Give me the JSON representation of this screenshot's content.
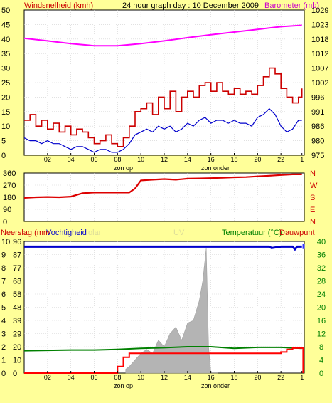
{
  "header": {
    "left_label": "Windsnelheid (kmh)",
    "title": "24 hour graph day : 10 December 2009",
    "right_label": "Barometer (mb)"
  },
  "x_axis": {
    "ticks": [
      "02",
      "04",
      "06",
      "08",
      "10",
      "12",
      "14",
      "16",
      "18",
      "20",
      "22",
      "1"
    ],
    "tick_hours": [
      2,
      4,
      6,
      8,
      10,
      12,
      14,
      16,
      18,
      20,
      22,
      23.8
    ],
    "sunrise_label": "zon op",
    "sunset_label": "zon onder",
    "sunrise_hour": 8.7,
    "sunset_hour": 16.6
  },
  "colors": {
    "background": "#ffff99",
    "plot_bg": "#ffffff",
    "wind": "#cc0000",
    "gust_red": "#ee0000",
    "wind_avg": "#0000cc",
    "barometer": "#ff00ff",
    "direction": "#dd0000",
    "humidity": "#0000cc",
    "temperature": "#008000",
    "dewpoint": "#ff0000",
    "uv_fill": "#b4b4b4",
    "label_blue": "#0000cc",
    "label_green": "#008000",
    "label_red": "#cc0000"
  },
  "panel2": {
    "right_labels": [
      "N",
      "W",
      "S",
      "E",
      "N"
    ]
  },
  "panel3": {
    "left_title": "Neerslag (mm",
    "humidity_title": "Vochtigheid",
    "solar_title": "olar",
    "uv_title": "UV",
    "temp_title": "Temperatuur (°C)",
    "dew_title": "Dauwpunt"
  },
  "chart_data": [
    {
      "type": "line",
      "panel": "wind and barometer",
      "y_left": {
        "title": "Windsnelheid (kmh)",
        "ticks": [
          0,
          5,
          10,
          15,
          20,
          25,
          30,
          35,
          40,
          45,
          50
        ],
        "ylim": [
          0,
          50
        ]
      },
      "y_right": {
        "title": "Barometer (mb)",
        "ticks": [
          975,
          980,
          986,
          991,
          996,
          1002,
          1007,
          1012,
          1018,
          1023,
          1029
        ],
        "ylim": [
          975,
          1029
        ]
      },
      "series": [
        {
          "color": "#cc0000",
          "hours": [
            0,
            0.5,
            1,
            1.5,
            2,
            2.5,
            3,
            3.5,
            4,
            4.5,
            5,
            5.5,
            6,
            6.5,
            7,
            7.5,
            8,
            8.5,
            9,
            9.5,
            10,
            10.5,
            11,
            11.5,
            12,
            12.5,
            13,
            13.5,
            14,
            14.5,
            15,
            15.5,
            16,
            16.5,
            17,
            17.5,
            18,
            18.5,
            19,
            19.5,
            20,
            20.5,
            21,
            21.5,
            22,
            22.5,
            23,
            23.5,
            23.8
          ],
          "values": [
            12,
            14,
            10,
            12,
            9,
            11,
            8,
            10,
            7,
            9,
            8,
            6,
            4,
            5,
            7,
            4,
            3,
            6,
            10,
            15,
            16,
            18,
            14,
            20,
            16,
            22,
            15,
            20,
            22,
            20,
            24,
            25,
            22,
            25,
            22,
            21,
            23,
            21,
            22,
            21,
            24,
            27,
            30,
            28,
            23,
            20,
            18,
            20,
            23
          ]
        },
        {
          "color": "#0000cc",
          "hours": [
            0,
            0.5,
            1,
            1.5,
            2,
            2.5,
            3,
            3.5,
            4,
            4.5,
            5,
            5.5,
            6,
            6.5,
            7,
            7.5,
            8,
            8.5,
            9,
            9.5,
            10,
            10.5,
            11,
            11.5,
            12,
            12.5,
            13,
            13.5,
            14,
            14.5,
            15,
            15.5,
            16,
            16.5,
            17,
            17.5,
            18,
            18.5,
            19,
            19.5,
            20,
            20.5,
            21,
            21.5,
            22,
            22.5,
            23,
            23.5,
            23.8
          ],
          "values": [
            6,
            5,
            5,
            4,
            5,
            4,
            4,
            3,
            2,
            3,
            3,
            2,
            1,
            2,
            2,
            1,
            1,
            2,
            4,
            7,
            8,
            9,
            8,
            10,
            9,
            10,
            8,
            9,
            11,
            10,
            12,
            13,
            11,
            12,
            12,
            11,
            12,
            11,
            11,
            10,
            13,
            14,
            16,
            14,
            10,
            8,
            9,
            12,
            12
          ]
        },
        {
          "color": "#ff00ff",
          "axis": "right",
          "hours": [
            0,
            2,
            4,
            6,
            8,
            10,
            12,
            14,
            16,
            18,
            20,
            22,
            23.8
          ],
          "values": [
            1018.5,
            1017.5,
            1016.5,
            1015.7,
            1015.7,
            1016.5,
            1017.5,
            1018.7,
            1019.8,
            1020.8,
            1021.8,
            1022.8,
            1023.3
          ]
        }
      ]
    },
    {
      "type": "line",
      "panel": "wind direction",
      "y_left": {
        "ticks": [
          0,
          90,
          180,
          270,
          360
        ],
        "ylim": [
          0,
          360
        ]
      },
      "y_right_labels": [
        "N",
        "W",
        "S",
        "E",
        "N"
      ],
      "series": [
        {
          "color": "#dd0000",
          "hours": [
            0,
            1,
            2,
            3,
            4,
            5,
            6,
            7,
            8,
            9,
            9.5,
            10,
            11,
            12,
            13,
            14,
            15,
            16,
            17,
            18,
            19,
            20,
            21,
            22,
            23,
            23.8
          ],
          "values": [
            175,
            180,
            182,
            180,
            185,
            210,
            215,
            215,
            215,
            215,
            245,
            305,
            310,
            315,
            310,
            318,
            320,
            322,
            325,
            328,
            330,
            335,
            340,
            345,
            350,
            350
          ]
        }
      ]
    },
    {
      "type": "area",
      "panel": "precipitation, humidity, UV, temperature",
      "y_left": {
        "title": "Neerslag (mm",
        "ticks": [
          0,
          1,
          2,
          3,
          4,
          5,
          6,
          7,
          8,
          9,
          10
        ],
        "ylim": [
          0,
          10
        ]
      },
      "y_left_humidity": {
        "title": "Vochtigheid",
        "ticks": [
          0,
          10,
          20,
          29,
          39,
          48,
          58,
          68,
          77,
          87,
          96
        ]
      },
      "y_right": {
        "title": "Temperatuur (°C)",
        "ticks": [
          0,
          4,
          8,
          12,
          16,
          20,
          24,
          28,
          32,
          36,
          40
        ],
        "ylim": [
          0,
          40
        ]
      },
      "series": [
        {
          "color": "#b4b4b4",
          "hours": [
            8.7,
            9,
            9.5,
            10,
            10.5,
            11,
            11.5,
            12,
            12.5,
            13,
            13.5,
            14,
            14.5,
            15,
            15.3,
            15.6,
            15.8,
            16,
            16.6
          ],
          "values": [
            0.3,
            0.5,
            1,
            1.5,
            1.8,
            1.5,
            2.5,
            2,
            3,
            3.5,
            2.5,
            3.8,
            4,
            5.5,
            7,
            9.5,
            2,
            0,
            0
          ]
        },
        {
          "color": "#0000cc",
          "hours": [
            0,
            4,
            8,
            12,
            16,
            20,
            21,
            21.2,
            22,
            23,
            23.2,
            23.4,
            23.8
          ],
          "values": [
            96,
            96,
            96,
            96,
            96,
            96,
            96,
            95,
            96,
            96,
            94,
            96,
            96
          ]
        },
        {
          "color": "#008000",
          "axis": "right",
          "hours": [
            0,
            2,
            4,
            6,
            8,
            10,
            12,
            14,
            16,
            18,
            20,
            22,
            23.8
          ],
          "values": [
            6.8,
            6.9,
            7,
            7,
            7.2,
            7.5,
            7.7,
            8,
            8,
            7.5,
            7.8,
            7.8,
            7.5
          ]
        },
        {
          "color": "#ff0000",
          "hours": [
            0,
            2,
            4,
            6,
            7.5,
            8,
            8.5,
            9,
            10,
            12,
            14,
            16,
            18,
            20,
            21,
            22,
            22.5,
            23,
            23.5,
            23.8,
            23.9
          ],
          "values": [
            0,
            0,
            0,
            0,
            0,
            0.5,
            1.2,
            1.5,
            1.5,
            1.5,
            1.5,
            1.5,
            1.5,
            1.5,
            1.5,
            1.6,
            1.8,
            1.9,
            1.9,
            1.9,
            0
          ]
        }
      ]
    }
  ]
}
